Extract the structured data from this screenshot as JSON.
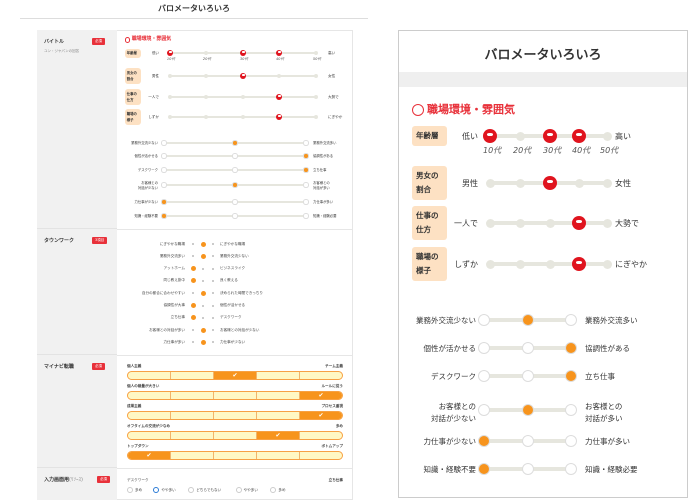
{
  "left_page": {
    "title": "バロメータいろいろ",
    "sections": [
      {
        "title": "バイトル",
        "badge": "必須",
        "sub": "ユン・ジヤパンの回答"
      },
      {
        "title": "タウンワーク",
        "badge": "3項目"
      },
      {
        "title": "マイナビ転職",
        "badge": "必須"
      },
      {
        "title": "入力画面用",
        "title_suffix": "(ﾘｿｰｽ)",
        "badge": "必須"
      }
    ],
    "townwork": [
      {
        "left": "にぎやかな職場",
        "right": "にぎやかな職場",
        "selected": 1
      },
      {
        "left": "業務外交流多い",
        "right": "業務外交流少ない",
        "selected": 1
      },
      {
        "left": "アットホーム",
        "right": "ビジネスライク",
        "selected": 0
      },
      {
        "left": "同じ教え掛中",
        "right": "良く教える",
        "selected": 0
      },
      {
        "left": "自分の都合に合わせやすい",
        "right": "決められた時間できっちり",
        "selected": 1
      },
      {
        "left": "協調性が大事",
        "right": "個性が活かせる",
        "selected": 0
      },
      {
        "left": "立ち仕事",
        "right": "デスクワーク",
        "selected": 0
      },
      {
        "left": "お客様との対話が多い",
        "right": "お客様との対話が少ない",
        "selected": 1
      },
      {
        "left": "力仕事が多い",
        "right": "力仕事が少ない",
        "selected": 1
      }
    ],
    "mynavi": [
      {
        "left": "個人主義",
        "right": "チーム主義",
        "selected": 2
      },
      {
        "left": "個人の裁量が大きい",
        "right": "ルールに従う",
        "selected": 4
      },
      {
        "left": "成果主義",
        "right": "プロセス重視",
        "selected": 4
      },
      {
        "left": "オフタイムの交流が少なめ",
        "right": "多め",
        "selected": 3
      },
      {
        "left": "トップダウン",
        "right": "ボトムアップ",
        "selected": 0
      }
    ],
    "input": {
      "left": "デスクワーク",
      "right": "立ち仕事",
      "options": [
        "多め",
        "やや多い",
        "どちらでもない",
        "やや多い",
        "多め"
      ],
      "selected": 1
    }
  },
  "barometer": {
    "title": "バロメータいろいろ",
    "heading": "職場環境・雰囲気",
    "heading_icon": "smiley-icon",
    "accent": "#e8313a",
    "orange": "#f7941d",
    "scales": [
      {
        "tag": "年齢層",
        "left": "低い",
        "right": "高い",
        "selected": [
          0,
          2,
          3
        ],
        "ticks": [
          "10代",
          "20代",
          "30代",
          "40代",
          "50代"
        ]
      },
      {
        "tag": "男女の割合",
        "left": "男性",
        "right": "女性",
        "selected": [
          2
        ]
      },
      {
        "tag": "仕事の仕方",
        "left": "一人で",
        "right": "大勢で",
        "selected": [
          3
        ]
      },
      {
        "tag": "職場の様子",
        "left": "しずか",
        "right": "にぎやか",
        "selected": [
          3
        ]
      }
    ],
    "choices": [
      {
        "left": "業務外交流少ない",
        "right": "業務外交流多い",
        "selected": 1
      },
      {
        "left": "個性が活かせる",
        "right": "協調性がある",
        "selected": 2
      },
      {
        "left": "デスクワーク",
        "right": "立ち仕事",
        "selected": 2
      },
      {
        "left": "お客様との対話が少ない",
        "right": "お客様との対話が多い",
        "selected": 1
      },
      {
        "left": "力仕事が少ない",
        "right": "力仕事が多い",
        "selected": 0
      },
      {
        "left": "知識・経験不要",
        "right": "知識・経験必要",
        "selected": 0
      }
    ]
  }
}
